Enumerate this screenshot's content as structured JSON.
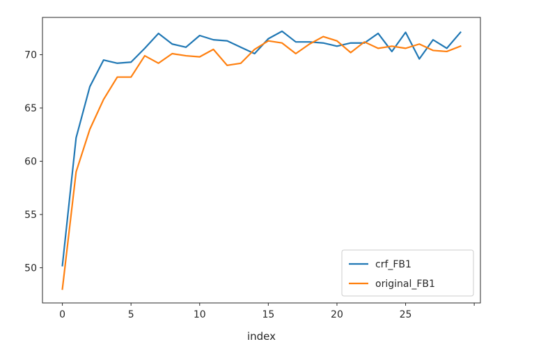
{
  "chart_data": {
    "type": "line",
    "title": "",
    "xlabel": "index",
    "ylabel": "",
    "xlim": [
      -1.45,
      30.45
    ],
    "ylim": [
      46.7,
      73.5
    ],
    "xticks": [
      0,
      5,
      10,
      15,
      20,
      25
    ],
    "yticks": [
      50,
      55,
      60,
      65,
      70
    ],
    "grid": false,
    "legend_position": "lower-right",
    "x": [
      0,
      1,
      2,
      3,
      4,
      5,
      6,
      7,
      8,
      9,
      10,
      11,
      12,
      13,
      14,
      15,
      16,
      17,
      18,
      19,
      20,
      21,
      22,
      23,
      24,
      25,
      26,
      27,
      28,
      29
    ],
    "series": [
      {
        "name": "crf_FB1",
        "color": "#1f77b4",
        "values": [
          50.2,
          62.2,
          67.0,
          69.5,
          69.2,
          69.3,
          70.6,
          72.0,
          71.0,
          70.7,
          71.8,
          71.4,
          71.3,
          70.7,
          70.1,
          71.5,
          72.2,
          71.2,
          71.2,
          71.1,
          70.8,
          71.1,
          71.1,
          72.0,
          70.3,
          72.1,
          69.6,
          71.4,
          70.6,
          72.1
        ]
      },
      {
        "name": "original_FB1",
        "color": "#ff7f0e",
        "values": [
          48.0,
          59.0,
          63.0,
          65.8,
          67.9,
          67.9,
          69.9,
          69.2,
          70.1,
          69.9,
          69.8,
          70.5,
          69.0,
          69.2,
          70.5,
          71.3,
          71.1,
          70.1,
          71.0,
          71.7,
          71.3,
          70.2,
          71.2,
          70.6,
          70.8,
          70.6,
          71.0,
          70.4,
          70.3,
          70.8
        ]
      }
    ]
  }
}
